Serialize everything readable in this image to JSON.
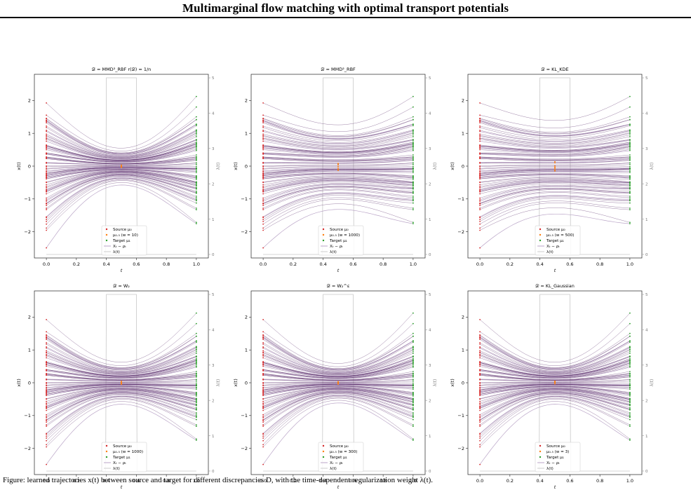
{
  "page": {
    "title": "Multimarginal flow matching with optimal transport potentials",
    "caption": "Figure: learned trajectories x(t) between source and target for different discrepancies D, with the time-dependent regularization weight λ(t)."
  },
  "colors": {
    "trajectory": "#4b1a5c",
    "trajectory_light": "#b49cc2",
    "source": "#d62728",
    "intermediate": "#ff7f0e",
    "target": "#2ca02c",
    "lambda": "#c8c8c8",
    "axis": "#222222"
  },
  "chart_data": [
    {
      "type": "line",
      "title": "𝒟 = MMD²_RBF    r(𝒟) = 1/n",
      "xlabel": "t",
      "ylabel": "x(t)",
      "y2label": "λ(t)",
      "xlim": [
        -0.08,
        1.08
      ],
      "ylim": [
        -2.8,
        2.8
      ],
      "y2lim": [
        -0.1,
        5.1
      ],
      "xticks": [
        "0.0",
        "0.2",
        "0.4",
        "0.6",
        "0.8",
        "1.0"
      ],
      "yticks": [
        "−2",
        "−1",
        "0",
        "1",
        "2"
      ],
      "y2ticks": [
        "0",
        "1",
        "2",
        "3",
        "4",
        "5"
      ],
      "mid_spread": 0.18,
      "lambda_window": [
        0.4,
        0.6
      ],
      "lambda_peak": 5.0,
      "legend": [
        "Source μ₀",
        "μ₀.₅ (w = 10)",
        "Target μ₁",
        "Xₜ − ρₜ",
        "λ(t)"
      ]
    },
    {
      "type": "line",
      "title": "𝒟 = MMD²_RBF",
      "xlabel": "t",
      "ylabel": "x(t)",
      "y2label": "λ(t)",
      "xlim": [
        -0.08,
        1.08
      ],
      "ylim": [
        -2.8,
        2.8
      ],
      "y2lim": [
        -0.1,
        5.1
      ],
      "xticks": [
        "0.0",
        "0.2",
        "0.4",
        "0.6",
        "0.8",
        "1.0"
      ],
      "yticks": [
        "−2",
        "−1",
        "0",
        "1",
        "2"
      ],
      "y2ticks": [
        "0",
        "1",
        "2",
        "3",
        "4",
        "5"
      ],
      "mid_spread": 0.55,
      "lambda_window": [
        0.4,
        0.6
      ],
      "lambda_peak": 5.0,
      "legend": [
        "Source μ₀",
        "μ₀.₅ (w = 1000)",
        "Target μ₁",
        "Xₜ − ρₜ",
        "λ(t)"
      ]
    },
    {
      "type": "line",
      "title": "𝒟 = KL_KDE",
      "xlabel": "t",
      "ylabel": "x(t)",
      "y2label": "λ(t)",
      "xlim": [
        -0.08,
        1.08
      ],
      "ylim": [
        -2.8,
        2.8
      ],
      "y2lim": [
        -0.1,
        5.1
      ],
      "xticks": [
        "0.0",
        "0.2",
        "0.4",
        "0.6",
        "0.8",
        "1.0"
      ],
      "yticks": [
        "−2",
        "−1",
        "0",
        "1",
        "2"
      ],
      "y2ticks": [
        "0",
        "1",
        "2",
        "3",
        "4",
        "5"
      ],
      "mid_spread": 0.62,
      "lambda_window": [
        0.4,
        0.6
      ],
      "lambda_peak": 5.0,
      "legend": [
        "Source μ₀",
        "μ₀.₅ (w = 500)",
        "Target μ₁",
        "Xₜ − ρₜ",
        "λ(t)"
      ]
    },
    {
      "type": "line",
      "title": "𝒟 = W₂",
      "xlabel": "t",
      "ylabel": "x(t)",
      "y2label": "λ(t)",
      "xlim": [
        -0.08,
        1.08
      ],
      "ylim": [
        -2.8,
        2.8
      ],
      "y2lim": [
        -0.1,
        5.1
      ],
      "xticks": [
        "0.0",
        "0.2",
        "0.4",
        "0.6",
        "0.8",
        "1.0"
      ],
      "yticks": [
        "−2",
        "−1",
        "0",
        "1",
        "2"
      ],
      "y2ticks": [
        "0",
        "1",
        "2",
        "3",
        "4",
        "5"
      ],
      "mid_spread": 0.22,
      "lambda_window": [
        0.4,
        0.6
      ],
      "lambda_peak": 5.0,
      "legend": [
        "Source μ₀",
        "μ₀.₅ (w = 1000)",
        "Target μ₁",
        "Xₜ − ρₜ",
        "λ(t)"
      ]
    },
    {
      "type": "line",
      "title": "𝒟 = W₂^ε",
      "xlabel": "t",
      "ylabel": "x(t)",
      "y2label": "λ(t)",
      "xlim": [
        -0.08,
        1.08
      ],
      "ylim": [
        -2.8,
        2.8
      ],
      "y2lim": [
        -0.1,
        5.1
      ],
      "xticks": [
        "0.0",
        "0.2",
        "0.4",
        "0.6",
        "0.8",
        "1.0"
      ],
      "yticks": [
        "−2",
        "−1",
        "0",
        "1",
        "2"
      ],
      "y2ticks": [
        "0",
        "1",
        "2",
        "3",
        "4",
        "5"
      ],
      "mid_spread": 0.2,
      "lambda_window": [
        0.4,
        0.6
      ],
      "lambda_peak": 5.0,
      "legend": [
        "Source μ₀",
        "μ₀.₅ (w = 300)",
        "Target μ₁",
        "Xₜ − ρₜ",
        "λ(t)"
      ]
    },
    {
      "type": "line",
      "title": "𝒟 = KL_Gaussian",
      "xlabel": "t",
      "ylabel": "x(t)",
      "y2label": "λ(t)",
      "xlim": [
        -0.08,
        1.08
      ],
      "ylim": [
        -2.8,
        2.8
      ],
      "y2lim": [
        -0.1,
        5.1
      ],
      "xticks": [
        "0.0",
        "0.2",
        "0.4",
        "0.6",
        "0.8",
        "1.0"
      ],
      "yticks": [
        "−2",
        "−1",
        "0",
        "1",
        "2"
      ],
      "y2ticks": [
        "0",
        "1",
        "2",
        "3",
        "4",
        "5"
      ],
      "mid_spread": 0.22,
      "lambda_window": [
        0.4,
        0.6
      ],
      "lambda_peak": 5.0,
      "legend": [
        "Source μ₀",
        "μ₀.₅ (w = 3)",
        "Target μ₁",
        "Xₜ − ρₜ",
        "λ(t)"
      ]
    }
  ]
}
